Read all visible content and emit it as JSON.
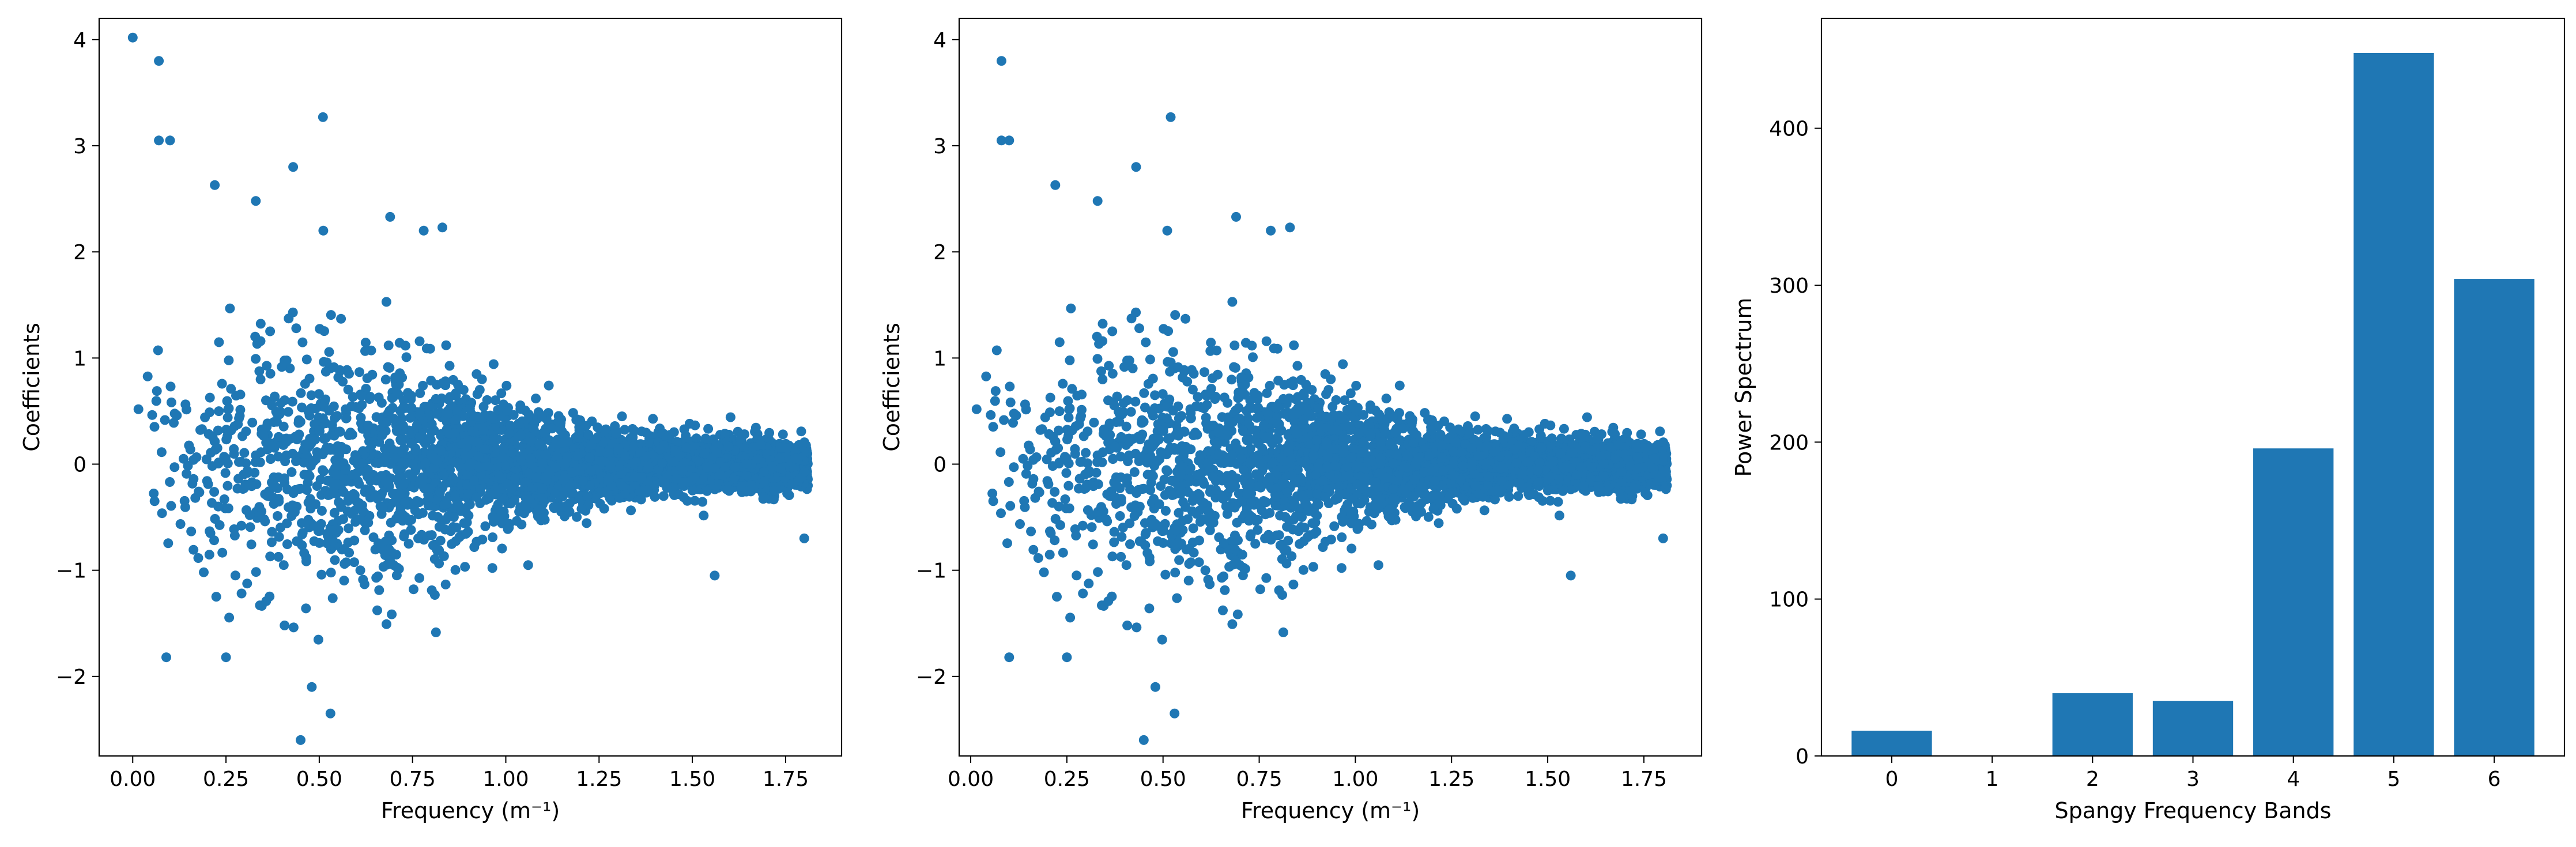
{
  "chart_data": [
    {
      "type": "scatter",
      "xlabel": "Frequency (m⁻¹)",
      "ylabel": "Coefficients",
      "xlim": [
        -0.09,
        1.9
      ],
      "ylim": [
        -2.75,
        4.2
      ],
      "xticks": [
        0.0,
        0.25,
        0.5,
        0.75,
        1.0,
        1.25,
        1.5,
        1.75
      ],
      "xtick_labels": [
        "0.00",
        "0.25",
        "0.50",
        "0.75",
        "1.00",
        "1.25",
        "1.50",
        "1.75"
      ],
      "yticks": [
        -2,
        -1,
        0,
        1,
        2,
        3,
        4
      ],
      "ytick_labels": [
        "−2",
        "−1",
        "0",
        "1",
        "2",
        "3",
        "4"
      ],
      "color": "#1f77b4",
      "x_range": [
        0.0,
        1.81
      ],
      "notable_points": [
        [
          0.0,
          4.02
        ],
        [
          0.07,
          3.8
        ],
        [
          0.07,
          3.05
        ],
        [
          0.1,
          3.05
        ],
        [
          0.51,
          3.27
        ],
        [
          0.22,
          2.63
        ],
        [
          0.33,
          2.48
        ],
        [
          0.43,
          2.8
        ],
        [
          0.69,
          2.33
        ],
        [
          0.83,
          2.23
        ],
        [
          0.78,
          2.2
        ],
        [
          0.45,
          -2.6
        ],
        [
          0.48,
          -2.1
        ],
        [
          0.53,
          -2.35
        ],
        [
          0.09,
          -1.82
        ],
        [
          0.25,
          -1.82
        ],
        [
          1.56,
          -1.05
        ],
        [
          1.8,
          -0.7
        ]
      ]
    },
    {
      "type": "scatter",
      "xlabel": "Frequency (m⁻¹)",
      "ylabel": "Coefficients",
      "xlim": [
        -0.03,
        1.9
      ],
      "ylim": [
        -2.75,
        4.2
      ],
      "xticks": [
        0.0,
        0.25,
        0.5,
        0.75,
        1.0,
        1.25,
        1.5,
        1.75
      ],
      "xtick_labels": [
        "0.00",
        "0.25",
        "0.50",
        "0.75",
        "1.00",
        "1.25",
        "1.50",
        "1.75"
      ],
      "yticks": [
        -2,
        -1,
        0,
        1,
        2,
        3,
        4
      ],
      "ytick_labels": [
        "−2",
        "−1",
        "0",
        "1",
        "2",
        "3",
        "4"
      ],
      "color": "#1f77b4",
      "x_range": [
        0.0,
        1.81
      ],
      "notable_points": [
        [
          0.08,
          3.8
        ],
        [
          0.08,
          3.05
        ],
        [
          0.1,
          3.05
        ],
        [
          0.52,
          3.27
        ],
        [
          0.22,
          2.63
        ],
        [
          0.33,
          2.48
        ],
        [
          0.43,
          2.8
        ],
        [
          0.69,
          2.33
        ],
        [
          0.83,
          2.23
        ],
        [
          0.78,
          2.2
        ],
        [
          0.45,
          -2.6
        ],
        [
          0.48,
          -2.1
        ],
        [
          0.53,
          -2.35
        ],
        [
          0.1,
          -1.82
        ],
        [
          0.25,
          -1.82
        ],
        [
          1.56,
          -1.05
        ],
        [
          1.8,
          -0.7
        ]
      ]
    },
    {
      "type": "bar",
      "xlabel": "Spangy Frequency Bands",
      "ylabel": "Power Spectrum",
      "categories": [
        "0",
        "1",
        "2",
        "3",
        "4",
        "5",
        "6"
      ],
      "values": [
        16,
        0,
        40,
        35,
        196,
        448,
        304
      ],
      "xlim": [
        -0.7,
        6.7
      ],
      "ylim": [
        0,
        470
      ],
      "yticks": [
        0,
        100,
        200,
        300,
        400
      ],
      "ytick_labels": [
        "0",
        "100",
        "200",
        "300",
        "400"
      ],
      "color": "#1f77b4"
    }
  ]
}
